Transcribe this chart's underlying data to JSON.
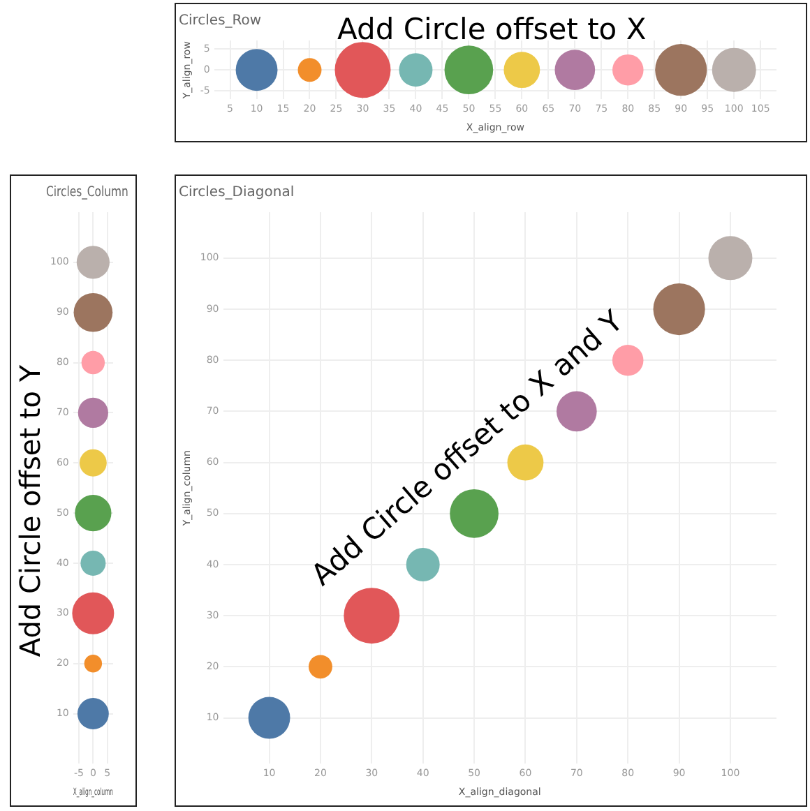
{
  "chart_data": [
    {
      "type": "bubble",
      "title": "Circles_Row",
      "xlabel": "X_align_row",
      "ylabel": "Y_align_row",
      "annotations": [
        "Add Circle offset to X"
      ],
      "x": [
        10,
        20,
        30,
        40,
        50,
        60,
        70,
        80,
        90,
        100
      ],
      "values": [
        0,
        0,
        0,
        0,
        0,
        0,
        0,
        0,
        0,
        0
      ],
      "sizes": [
        0.56,
        0.18,
        1,
        0.36,
        0.76,
        0.42,
        0.52,
        0.31,
        0.86,
        0.62
      ],
      "colors": [
        "#4e79a7",
        "#f28e2b",
        "#e15759",
        "#76b7b2",
        "#59a14f",
        "#edc948",
        "#b07aa1",
        "#ff9da7",
        "#9c755f",
        "#bab0ac"
      ],
      "xlim": [
        2,
        108
      ],
      "xticks": [
        5,
        10,
        15,
        20,
        25,
        30,
        35,
        40,
        45,
        50,
        55,
        60,
        65,
        70,
        75,
        80,
        85,
        90,
        95,
        100,
        105
      ],
      "ylim": [
        -7,
        7
      ],
      "yticks": [
        -5,
        0,
        5
      ],
      "grid": true
    },
    {
      "type": "bubble",
      "title": "Circles_Column",
      "xlabel": "X_align_column",
      "annotations": [
        "Add Circle offset to Y"
      ],
      "x": [
        0,
        0,
        0,
        0,
        0,
        0,
        0,
        0,
        0,
        0
      ],
      "values": [
        10,
        20,
        30,
        40,
        50,
        60,
        70,
        80,
        90,
        100
      ],
      "sizes": [
        0.56,
        0.18,
        1,
        0.36,
        0.76,
        0.42,
        0.52,
        0.31,
        0.86,
        0.62
      ],
      "colors": [
        "#4e79a7",
        "#f28e2b",
        "#e15759",
        "#76b7b2",
        "#59a14f",
        "#edc948",
        "#b07aa1",
        "#ff9da7",
        "#9c755f",
        "#bab0ac"
      ],
      "xlim": [
        -7,
        7
      ],
      "xticks": [
        -5,
        0,
        5
      ],
      "ylim": [
        0,
        110
      ],
      "yticks": [
        10,
        20,
        30,
        40,
        50,
        60,
        70,
        80,
        90,
        100
      ],
      "grid": true
    },
    {
      "type": "bubble",
      "title": "Circles_Diagonal",
      "xlabel": "X_align_diagonal",
      "ylabel": "Y_align_column",
      "annotations": [
        "Add Circle offset to X and Y"
      ],
      "x": [
        10,
        20,
        30,
        40,
        50,
        60,
        70,
        80,
        90,
        100
      ],
      "values": [
        10,
        20,
        30,
        40,
        50,
        60,
        70,
        80,
        90,
        100
      ],
      "sizes": [
        0.56,
        0.18,
        1,
        0.36,
        0.76,
        0.42,
        0.52,
        0.31,
        0.86,
        0.62
      ],
      "colors": [
        "#4e79a7",
        "#f28e2b",
        "#e15759",
        "#76b7b2",
        "#59a14f",
        "#edc948",
        "#b07aa1",
        "#ff9da7",
        "#9c755f",
        "#bab0ac"
      ],
      "xlim": [
        1,
        109
      ],
      "xticks": [
        10,
        20,
        30,
        40,
        50,
        60,
        70,
        80,
        90,
        100
      ],
      "ylim": [
        1,
        109
      ],
      "yticks": [
        10,
        20,
        30,
        40,
        50,
        60,
        70,
        80,
        90,
        100
      ],
      "grid": true
    }
  ]
}
